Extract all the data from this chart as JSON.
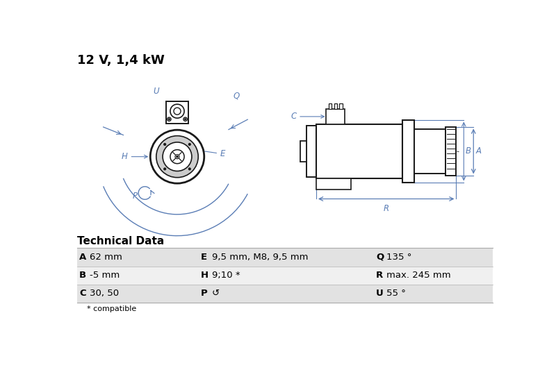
{
  "title": "12 V, 1,4 kW",
  "bg_color": "#ffffff",
  "diagram_color": "#5a7db5",
  "dark_color": "#1a1a1a",
  "table_header": "Technical Data",
  "table_rows": [
    [
      "A",
      "62 mm",
      "E",
      "9,5 mm, M8, 9,5 mm",
      "Q",
      "135 °"
    ],
    [
      "B",
      "-5 mm",
      "H",
      "9;10 *",
      "R",
      "max. 245 mm"
    ],
    [
      "C",
      "30, 50",
      "P",
      "↺",
      "U",
      "55 °"
    ]
  ],
  "footnote": "* compatible",
  "row_bg": [
    "#e2e2e2",
    "#f0f0f0",
    "#e2e2e2"
  ]
}
